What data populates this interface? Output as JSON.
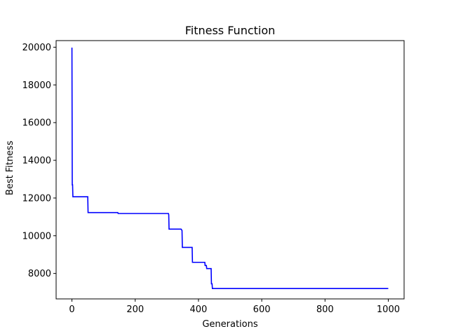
{
  "chart_data": {
    "type": "line",
    "title": "Fitness Function",
    "xlabel": "Generations",
    "ylabel": "Best Fitness",
    "xlim": [
      -50,
      1050
    ],
    "ylim": [
      6650,
      20350
    ],
    "xticks": [
      0,
      200,
      400,
      600,
      800,
      1000
    ],
    "yticks": [
      8000,
      10000,
      12000,
      14000,
      16000,
      18000,
      20000
    ],
    "grid": false,
    "line_color": "#0000ff",
    "series": [
      {
        "x": [
          0,
          1,
          2,
          3,
          50,
          51,
          145,
          146,
          305,
          306,
          307,
          345,
          348,
          349,
          380,
          381,
          420,
          421,
          425,
          426,
          440,
          441,
          443,
          444,
          1000
        ],
        "y": [
          19980,
          12700,
          12700,
          12070,
          12070,
          11230,
          11230,
          11180,
          11180,
          11120,
          10350,
          10350,
          10280,
          9380,
          9380,
          8590,
          8590,
          8420,
          8420,
          8260,
          8260,
          7450,
          7450,
          7200,
          7200
        ]
      }
    ]
  }
}
